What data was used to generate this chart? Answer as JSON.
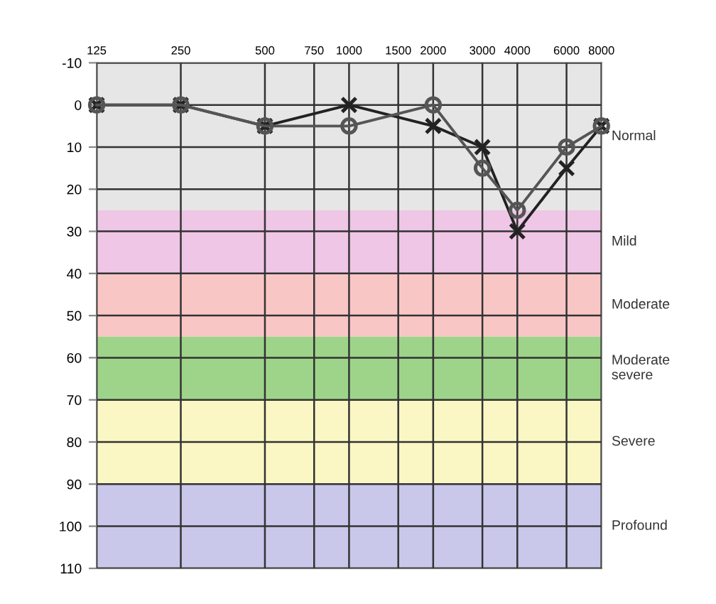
{
  "chart_data": {
    "type": "line",
    "x": [
      125,
      250,
      500,
      1000,
      2000,
      3000,
      4000,
      6000,
      8000
    ],
    "series": [
      {
        "color": "#222222",
        "marker": "cross",
        "values": [
          0,
          0,
          5,
          0,
          5,
          10,
          30,
          15,
          5
        ]
      },
      {
        "color": "#555555",
        "marker": "circle",
        "values": [
          0,
          0,
          5,
          5,
          0,
          15,
          25,
          10,
          5
        ]
      }
    ],
    "log": "x",
    "xlim": [
      125,
      8000
    ],
    "xticks": [
      125,
      250,
      500,
      750,
      1000,
      1500,
      2000,
      3000,
      4000,
      6000,
      8000
    ],
    "ylim": [
      110,
      -10
    ],
    "yticks": [
      -10,
      0,
      10,
      20,
      30,
      40,
      50,
      60,
      70,
      80,
      90,
      100,
      110
    ],
    "grid": true,
    "line_style": "solid",
    "bands": [
      {
        "axis": "y",
        "from": -10,
        "to": 25,
        "label": "Normal",
        "color": "#e6e6e6"
      },
      {
        "axis": "y",
        "from": 25,
        "to": 40,
        "label": "Mild",
        "color": "#efc6e6"
      },
      {
        "axis": "y",
        "from": 40,
        "to": 55,
        "label": "Moderate",
        "color": "#f9c6c6"
      },
      {
        "axis": "y",
        "from": 55,
        "to": 70,
        "label": "Moderate\nsevere",
        "color": "#9ed48a"
      },
      {
        "axis": "y",
        "from": 70,
        "to": 90,
        "label": "Severe",
        "color": "#fbf7c4"
      },
      {
        "axis": "y",
        "from": 90,
        "to": 110,
        "label": "Profound",
        "color": "#c9c7ea"
      }
    ]
  }
}
